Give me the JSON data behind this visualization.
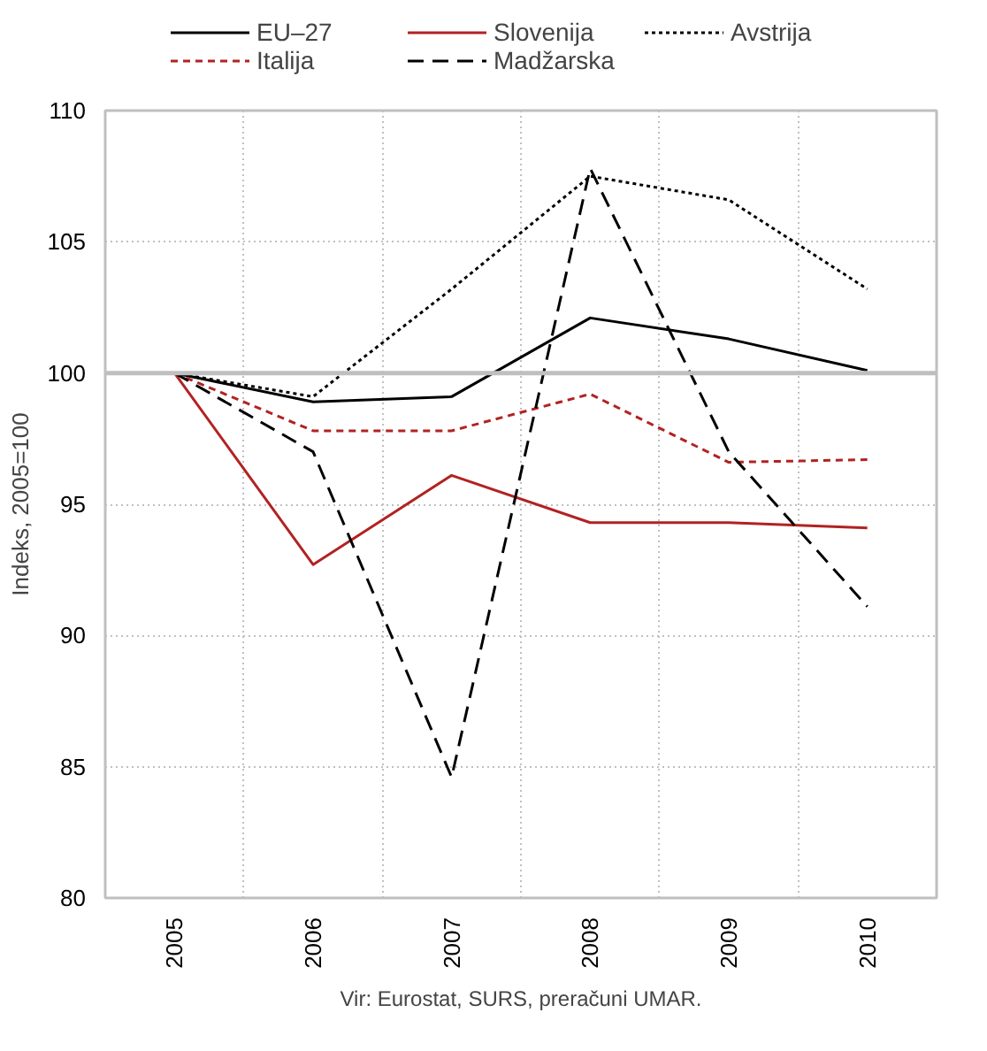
{
  "chart_data": {
    "type": "line",
    "ylabel": "Indeks, 2005=100",
    "categories": [
      "2005",
      "2006",
      "2007",
      "2008",
      "2009",
      "2010"
    ],
    "ylim": [
      80,
      110
    ],
    "yticks": [
      80,
      85,
      90,
      95,
      100,
      105,
      110
    ],
    "grid": true,
    "legend": "top",
    "marker": "none",
    "ref_lines": [
      {
        "axis": "y",
        "value": 100,
        "color": "#bfbfbf"
      }
    ],
    "series": [
      {
        "name": "EU–27",
        "color": "#000000",
        "line_style": "solid",
        "values": [
          100,
          98.9,
          99.1,
          102.1,
          101.3,
          100.1
        ]
      },
      {
        "name": "Slovenija",
        "color": "#b22222",
        "line_style": "solid",
        "values": [
          100,
          92.7,
          96.1,
          94.3,
          94.3,
          94.1
        ]
      },
      {
        "name": "Avstrija",
        "color": "#000000",
        "line_style": "dotted",
        "values": [
          100,
          99.1,
          103.2,
          107.5,
          106.6,
          103.2
        ]
      },
      {
        "name": "Italija",
        "color": "#b22222",
        "line_style": "dashed",
        "values": [
          100,
          97.8,
          97.8,
          99.2,
          96.6,
          96.7
        ]
      },
      {
        "name": "Madžarska",
        "color": "#000000",
        "line_style": "dashed",
        "values": [
          100,
          97.0,
          84.6,
          107.8,
          97.0,
          91.1
        ]
      }
    ],
    "annotations": [
      "Vir: Eurostat, SURS, preračuni UMAR."
    ]
  }
}
